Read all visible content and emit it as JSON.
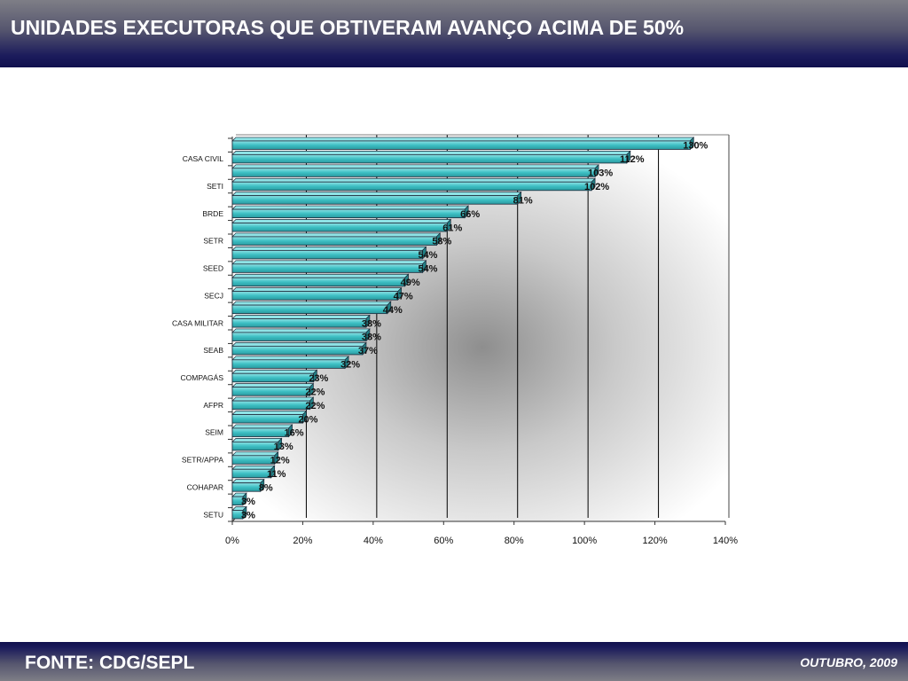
{
  "header": {
    "title": "UNIDADES EXECUTORAS QUE OBTIVERAM AVANÇO ACIMA DE 50%"
  },
  "footer": {
    "source": "FONTE: CDG/SEPL",
    "date": "OUTUBRO, 2009"
  },
  "colors": {
    "bar": "#3dbfc3",
    "bar_top": "#8fe3e6",
    "bar_border": "#1c2a3a",
    "grid": "#000000"
  },
  "chart_data": {
    "type": "bar",
    "orientation": "horizontal",
    "categories": [
      "",
      "CASA CIVIL",
      "",
      "SETI",
      "",
      "BRDE",
      "",
      "SETR",
      "",
      "SEED",
      "",
      "SECJ",
      "",
      "CASA MILITAR",
      "",
      "SEAB",
      "",
      "COMPAGÁS",
      "",
      "AFPR",
      "",
      "SEIM",
      "",
      "SETR/APPA",
      "",
      "COHAPAR",
      "",
      "SETU"
    ],
    "values": [
      130,
      112,
      103,
      102,
      81,
      66,
      61,
      58,
      54,
      54,
      49,
      47,
      44,
      38,
      38,
      37,
      32,
      23,
      22,
      22,
      20,
      16,
      13,
      12,
      11,
      8,
      3,
      3
    ],
    "value_labels": [
      "130%",
      "112%",
      "103%",
      "102%",
      "81%",
      "66%",
      "61%",
      "58%",
      "54%",
      "54%",
      "49%",
      "47%",
      "44%",
      "38%",
      "38%",
      "37%",
      "32%",
      "23%",
      "22%",
      "22%",
      "20%",
      "16%",
      "13%",
      "12%",
      "11%",
      "8%",
      "3%",
      "3%"
    ],
    "xlim": [
      0,
      140
    ],
    "xticks": [
      0,
      20,
      40,
      60,
      80,
      100,
      120,
      140
    ],
    "xtick_labels": [
      "0%",
      "20%",
      "40%",
      "60%",
      "80%",
      "100%",
      "120%",
      "140%"
    ],
    "title": "",
    "xlabel": "",
    "ylabel": "",
    "grid": true,
    "legend": "none"
  }
}
